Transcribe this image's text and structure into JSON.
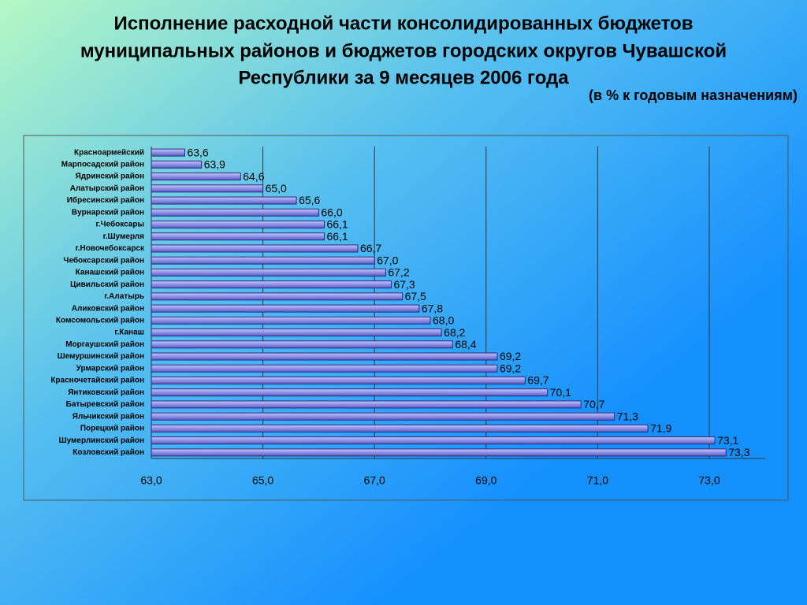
{
  "chart_data": {
    "type": "hbar",
    "title": [
      "Исполнение расходной части консолидированных бюджетов",
      "муниципальных районов и бюджетов городских округов Чувашской",
      "Республики за 9 месяцев 2006 года"
    ],
    "subtitle": "(в % к годовым назначениям)",
    "categories": [
      "Красноармейский",
      "Марпосадский район",
      "Ядринский район",
      "Алатырский район",
      "Ибресинский район",
      "Вурнарский район",
      "г.Чебоксары",
      "г.Шумерля",
      "г.Новочебоксарск",
      "Чебоксарский район",
      "Канашский район",
      "Цивильский район",
      "г.Алатырь",
      "Аликовский район",
      "Комсомольский район",
      "г.Канаш",
      "Моргаушский район",
      "Шемуршинский район",
      "Урмарский район",
      "Красночетайский район",
      "Янтиковский район",
      "Батыревский район",
      "Яльчикский район",
      "Порецкий район",
      "Шумерлинский район",
      "Козловский район"
    ],
    "values": [
      63.6,
      63.9,
      64.6,
      65.0,
      65.6,
      66.0,
      66.1,
      66.1,
      66.7,
      67.0,
      67.2,
      67.3,
      67.5,
      67.8,
      68.0,
      68.2,
      68.4,
      69.2,
      69.2,
      69.7,
      70.1,
      70.7,
      71.3,
      71.9,
      73.1,
      73.3
    ],
    "value_labels": [
      "63,6",
      "63,9",
      "64,6",
      "65,0",
      "65,6",
      "66,0",
      "66,1",
      "66,1",
      "66,7",
      "67,0",
      "67,2",
      "67,3",
      "67,5",
      "67,8",
      "68,0",
      "68,2",
      "68,4",
      "69,2",
      "69,2",
      "69,7",
      "70,1",
      "70,7",
      "71,3",
      "71,9",
      "73,1",
      "73,3"
    ],
    "color": "#8f90e6",
    "xlim": [
      63,
      74
    ],
    "xticks": [
      {
        "value": 63,
        "label": "63,0"
      },
      {
        "value": 65,
        "label": "65,0"
      },
      {
        "value": 67,
        "label": "67,0"
      },
      {
        "value": 69,
        "label": "69,0"
      },
      {
        "value": 71,
        "label": "71,0"
      },
      {
        "value": 73,
        "label": "73,0"
      }
    ],
    "grid": true
  }
}
